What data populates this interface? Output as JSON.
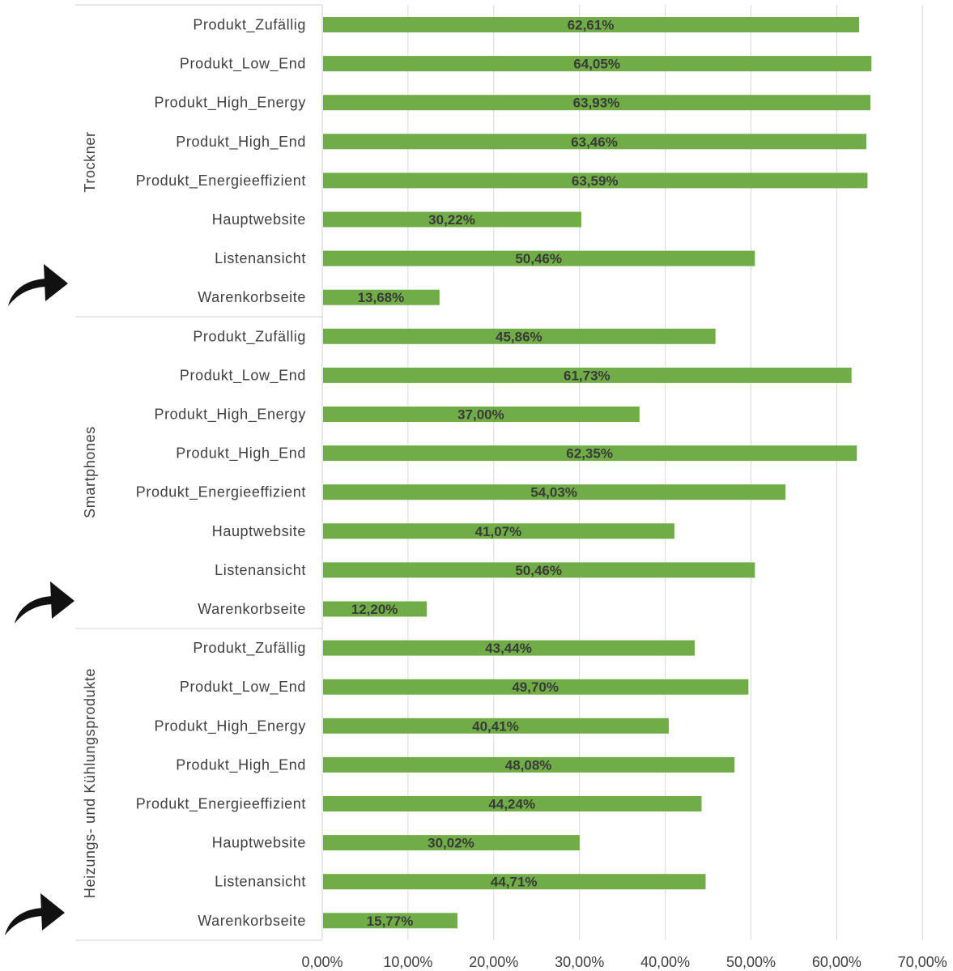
{
  "chart_data": {
    "type": "bar",
    "orientation": "horizontal",
    "title": "",
    "xlabel": "",
    "ylabel": "",
    "xlim": [
      0,
      70
    ],
    "x_ticks": [
      "0,00%",
      "10,00%",
      "20,00%",
      "30,00%",
      "40,00%",
      "50,00%",
      "60,00%",
      "70,00%"
    ],
    "grid": true,
    "bar_color": "#70ad47",
    "groups": [
      {
        "name": "Trockner",
        "categories": [
          "Produkt_Zufällig",
          "Produkt_Low_End",
          "Produkt_High_Energy",
          "Produkt_High_End",
          "Produkt_Energieeffizient",
          "Hauptwebsite",
          "Listenansicht",
          "Warenkorbseite"
        ],
        "values": [
          62.61,
          64.05,
          63.93,
          63.46,
          63.59,
          30.22,
          50.46,
          13.68
        ],
        "labels": [
          "62,61%",
          "64,05%",
          "63,93%",
          "63,46%",
          "63,59%",
          "30,22%",
          "50,46%",
          "13,68%"
        ]
      },
      {
        "name": "Smartphones",
        "categories": [
          "Produkt_Zufällig",
          "Produkt_Low_End",
          "Produkt_High_Energy",
          "Produkt_High_End",
          "Produkt_Energieeffizient",
          "Hauptwebsite",
          "Listenansicht",
          "Warenkorbseite"
        ],
        "values": [
          45.86,
          61.73,
          37.0,
          62.35,
          54.03,
          41.07,
          50.46,
          12.2
        ],
        "labels": [
          "45,86%",
          "61,73%",
          "37,00%",
          "62,35%",
          "54,03%",
          "41,07%",
          "50,46%",
          "12,20%"
        ]
      },
      {
        "name": "Heizungs- und Kühlungsprodukte",
        "categories": [
          "Produkt_Zufällig",
          "Produkt_Low_End",
          "Produkt_High_Energy",
          "Produkt_High_End",
          "Produkt_Energieeffizient",
          "Hauptwebsite",
          "Listenansicht",
          "Warenkorbseite"
        ],
        "values": [
          43.44,
          49.7,
          40.41,
          48.08,
          44.24,
          30.02,
          44.71,
          15.77
        ],
        "labels": [
          "43,44%",
          "49,70%",
          "40,41%",
          "48,08%",
          "44,24%",
          "30,02%",
          "44,71%",
          "15,77%"
        ]
      }
    ],
    "annotations": [
      {
        "icon": "curved-arrow-icon",
        "points_to": "Warenkorbseite",
        "group": "Trockner"
      },
      {
        "icon": "curved-arrow-icon",
        "points_to": "Warenkorbseite",
        "group": "Smartphones"
      },
      {
        "icon": "curved-arrow-icon",
        "points_to": "Warenkorbseite",
        "group": "Heizungs- und Kühlungsprodukte"
      }
    ]
  }
}
